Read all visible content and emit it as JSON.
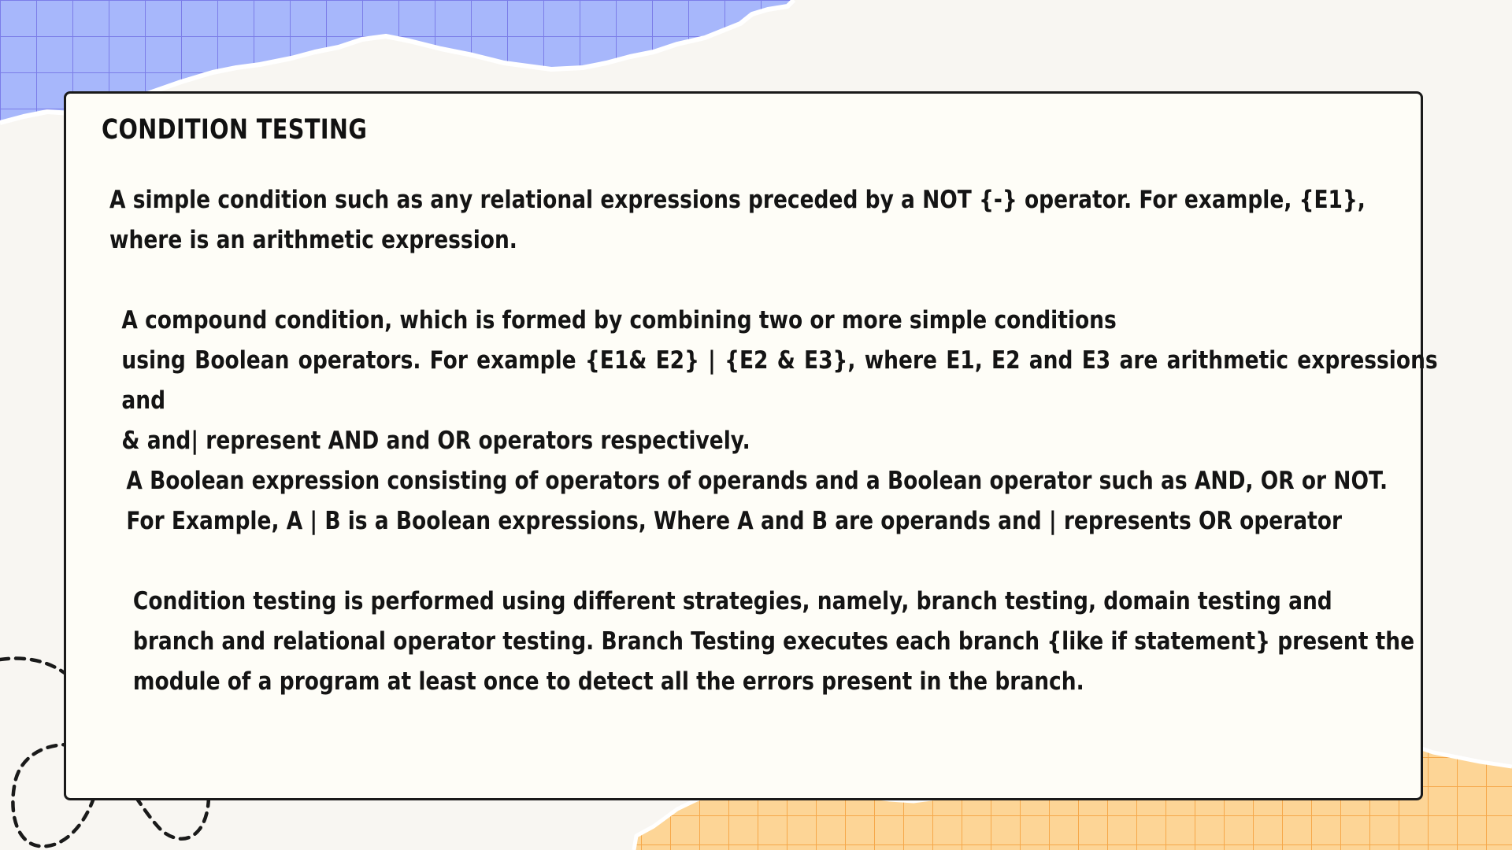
{
  "slide": {
    "title": "CONDITION TESTING",
    "paragraphs": [
      {
        "lines": [
          "A simple condition such as any relational expressions preceded by a NOT {-} operator. For example, {E1},",
          "where is an arithmetic expression."
        ]
      },
      {
        "lines": [
          "A compound condition, which is formed by combining two or more simple conditions",
          "using Boolean operators. For example {E1& E2} | {E2 & E3}, where E1, E2 and E3 are arithmetic expressions and",
          "& and| represent AND and OR operators respectively."
        ]
      },
      {
        "lines": [
          "A Boolean expression consisting of operators of operands and a Boolean operator such as AND, OR or NOT.",
          "For Example, A | B is a Boolean expressions, Where A and B are operands and | represents OR operator"
        ]
      },
      {
        "lines": [
          "Condition testing is performed using different strategies, namely, branch testing, domain testing and",
          "branch and relational operator testing. Branch Testing executes each branch {like if statement} present the",
          "module of a program at least once to detect all the errors present in the branch."
        ]
      }
    ]
  },
  "colors": {
    "background": "#f8f6f2",
    "card": "#fefdf7",
    "blue_paper": "#a7b7fb",
    "blue_grid": "#7b7de8",
    "orange_paper": "#fdd596",
    "orange_grid": "#f6a84a",
    "text": "#141414"
  }
}
